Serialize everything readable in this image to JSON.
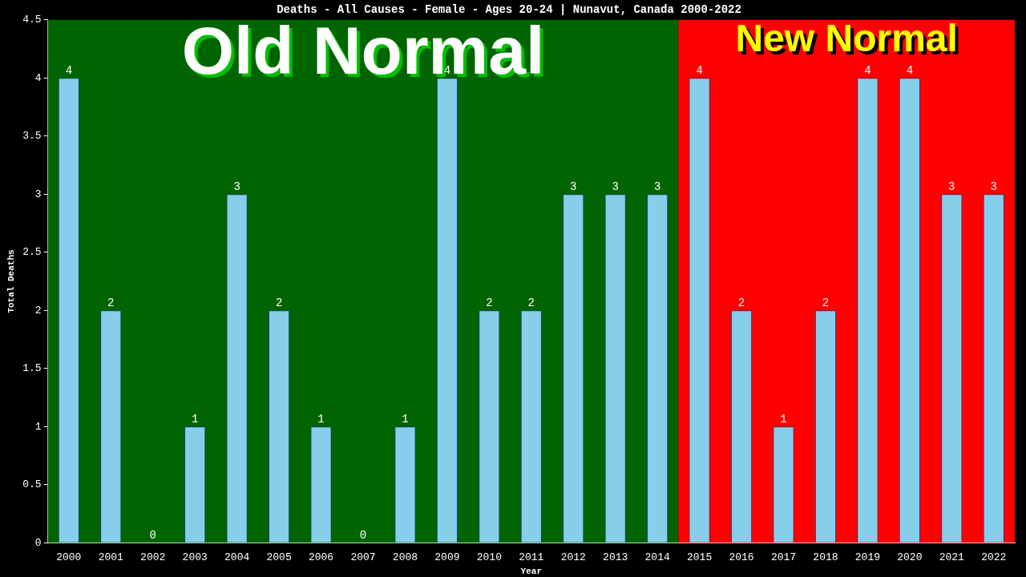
{
  "chart_data": {
    "type": "bar",
    "title": "Deaths - All Causes - Female - Ages 20-24 | Nunavut, Canada 2000-2022",
    "xlabel": "Year",
    "ylabel": "Total Deaths",
    "categories": [
      "2000",
      "2001",
      "2002",
      "2003",
      "2004",
      "2005",
      "2006",
      "2007",
      "2008",
      "2009",
      "2010",
      "2011",
      "2012",
      "2013",
      "2014",
      "2015",
      "2016",
      "2017",
      "2018",
      "2019",
      "2020",
      "2021",
      "2022"
    ],
    "values": [
      4,
      2,
      0,
      1,
      3,
      2,
      1,
      0,
      1,
      4,
      2,
      2,
      3,
      3,
      3,
      4,
      2,
      1,
      2,
      4,
      4,
      3,
      3
    ],
    "color": "#87ceeb",
    "ylim": [
      0,
      4.5
    ],
    "yticks": [
      0,
      0.5,
      1,
      1.5,
      2,
      2.5,
      3,
      3.5,
      4,
      4.5
    ],
    "bands": [
      {
        "axis": "x",
        "from": "2000",
        "to": "2014",
        "label": "Old Normal",
        "color": "#006400"
      },
      {
        "axis": "x",
        "from": "2015",
        "to": "2022",
        "label": "New Normal",
        "color": "#ff0000"
      }
    ],
    "data_labels": true,
    "grid": false,
    "legend": false
  }
}
